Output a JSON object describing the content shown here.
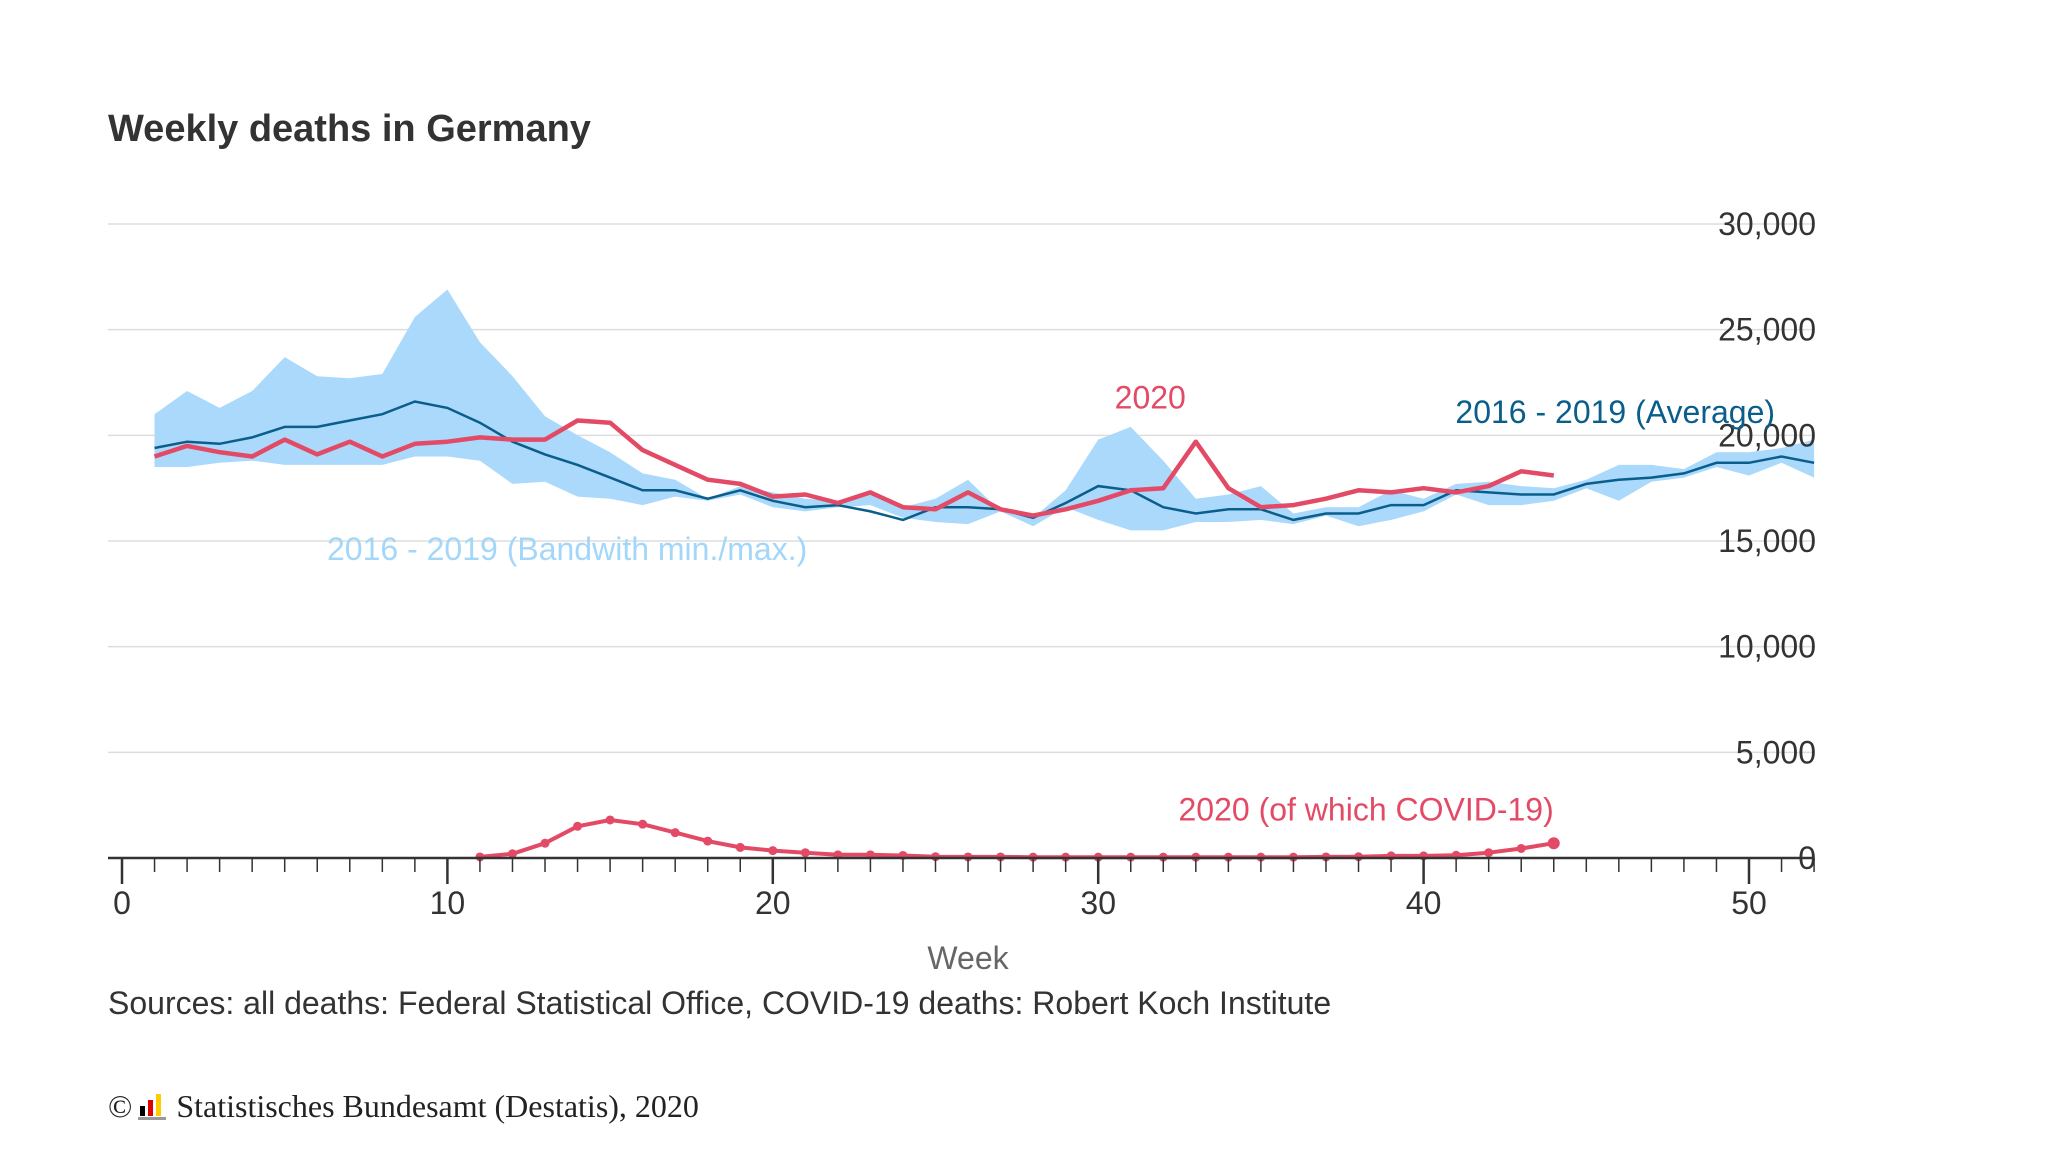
{
  "title": "Weekly deaths in Germany",
  "source_text": "Sources: all deaths: Federal Statistical Office, COVID-19 deaths: Robert Koch Institute",
  "credit": {
    "symbol": "©",
    "text": "Statistisches Bundesamt (Destatis), 2020",
    "logo": "destatis-logo"
  },
  "colors": {
    "band": "#aad9fb",
    "average": "#0a5e8c",
    "y2020": "#e34a65",
    "band_label": "#a3d7fa",
    "grid": "#dddddd",
    "axis": "#333333"
  },
  "chart_data": {
    "type": "line",
    "xlabel": "Week",
    "ylabel": "",
    "xlim": [
      0,
      52
    ],
    "ylim": [
      0,
      30000
    ],
    "x_ticks": [
      0,
      10,
      20,
      30,
      40,
      50
    ],
    "y_ticks": [
      0,
      5000,
      10000,
      15000,
      20000,
      25000,
      30000
    ],
    "y_tick_labels": [
      "0",
      "5,000",
      "10,000",
      "15,000",
      "20,000",
      "25,000",
      "30,000"
    ],
    "grid": "horizontal",
    "series": [
      {
        "name": "2016 - 2019 (Bandwith min./max.)",
        "type": "band",
        "x": [
          1,
          2,
          3,
          4,
          5,
          6,
          7,
          8,
          9,
          10,
          11,
          12,
          13,
          14,
          15,
          16,
          17,
          18,
          19,
          20,
          21,
          22,
          23,
          24,
          25,
          26,
          27,
          28,
          29,
          30,
          31,
          32,
          33,
          34,
          35,
          36,
          37,
          38,
          39,
          40,
          41,
          42,
          43,
          44,
          45,
          46,
          47,
          48,
          49,
          50,
          51,
          52
        ],
        "min": [
          18500,
          18500,
          18700,
          18800,
          18600,
          18600,
          18600,
          18600,
          19000,
          19000,
          18800,
          17700,
          17800,
          17100,
          17000,
          16700,
          17100,
          16900,
          17200,
          16600,
          16400,
          16600,
          16700,
          16100,
          15900,
          15800,
          16400,
          15700,
          16600,
          16000,
          15500,
          15500,
          15900,
          15900,
          16000,
          15800,
          16200,
          15700,
          16000,
          16400,
          17200,
          16700,
          16700,
          16900,
          17500,
          16900,
          17800,
          18000,
          18500,
          18100,
          18700,
          18000
        ],
        "max": [
          21000,
          22100,
          21300,
          22100,
          23700,
          22800,
          22700,
          22900,
          25600,
          26900,
          24400,
          22800,
          20900,
          20000,
          19200,
          18200,
          17900,
          17000,
          17600,
          17300,
          17000,
          16900,
          17400,
          16600,
          17000,
          17900,
          16400,
          16100,
          17400,
          19800,
          20400,
          18800,
          17000,
          17200,
          17600,
          16300,
          16600,
          16600,
          17400,
          17000,
          17700,
          17800,
          17600,
          17500,
          17900,
          18600,
          18600,
          18400,
          19200,
          19200,
          19400,
          19800
        ]
      },
      {
        "name": "2016 - 2019 (Average)",
        "x": [
          1,
          2,
          3,
          4,
          5,
          6,
          7,
          8,
          9,
          10,
          11,
          12,
          13,
          14,
          15,
          16,
          17,
          18,
          19,
          20,
          21,
          22,
          23,
          24,
          25,
          26,
          27,
          28,
          29,
          30,
          31,
          32,
          33,
          34,
          35,
          36,
          37,
          38,
          39,
          40,
          41,
          42,
          43,
          44,
          45,
          46,
          47,
          48,
          49,
          50,
          51,
          52
        ],
        "values": [
          19400,
          19700,
          19600,
          19900,
          20400,
          20400,
          20700,
          21000,
          21600,
          21300,
          20600,
          19700,
          19100,
          18600,
          18000,
          17400,
          17400,
          17000,
          17400,
          16900,
          16600,
          16700,
          16400,
          16000,
          16600,
          16600,
          16500,
          16100,
          16800,
          17600,
          17400,
          16600,
          16300,
          16500,
          16500,
          16000,
          16300,
          16300,
          16700,
          16700,
          17400,
          17300,
          17200,
          17200,
          17700,
          17900,
          18000,
          18200,
          18700,
          18700,
          19000,
          18700
        ]
      },
      {
        "name": "2020",
        "x": [
          1,
          2,
          3,
          4,
          5,
          6,
          7,
          8,
          9,
          10,
          11,
          12,
          13,
          14,
          15,
          16,
          17,
          18,
          19,
          20,
          21,
          22,
          23,
          24,
          25,
          26,
          27,
          28,
          29,
          30,
          31,
          32,
          33,
          34,
          35,
          36,
          37,
          38,
          39,
          40,
          41,
          42,
          43,
          44
        ],
        "values": [
          19000,
          19500,
          19200,
          19000,
          19800,
          19100,
          19700,
          19000,
          19600,
          19700,
          19900,
          19800,
          19800,
          20700,
          20600,
          19300,
          18600,
          17900,
          17700,
          17100,
          17200,
          16800,
          17300,
          16600,
          16500,
          17300,
          16500,
          16200,
          16500,
          16900,
          17400,
          17500,
          19700,
          17500,
          16600,
          16700,
          17000,
          17400,
          17300,
          17500,
          17300,
          17600,
          18300,
          18100
        ]
      },
      {
        "name": "2020 (of which COVID-19)",
        "x": [
          11,
          12,
          13,
          14,
          15,
          16,
          17,
          18,
          19,
          20,
          21,
          22,
          23,
          24,
          25,
          26,
          27,
          28,
          29,
          30,
          31,
          32,
          33,
          34,
          35,
          36,
          37,
          38,
          39,
          40,
          41,
          42,
          43,
          44
        ],
        "values": [
          50,
          200,
          700,
          1500,
          1800,
          1600,
          1200,
          800,
          500,
          350,
          250,
          150,
          150,
          120,
          60,
          50,
          50,
          40,
          40,
          40,
          40,
          40,
          40,
          40,
          40,
          40,
          50,
          60,
          100,
          100,
          130,
          250,
          450,
          700
        ]
      }
    ],
    "annotations": [
      {
        "text": "2020",
        "series": "2020"
      },
      {
        "text": "2016 - 2019 (Average)",
        "series": "2016 - 2019 (Average)"
      },
      {
        "text": "2016 - 2019 (Bandwith min./max.)",
        "series": "2016 - 2019 (Bandwith min./max.)"
      },
      {
        "text": "2020 (of which COVID-19)",
        "series": "2020 (of which COVID-19)"
      }
    ]
  }
}
